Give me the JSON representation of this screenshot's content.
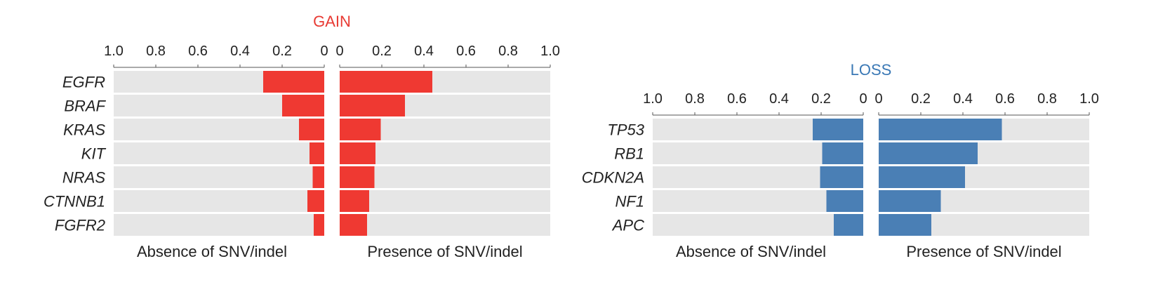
{
  "chart_data": [
    {
      "type": "bar",
      "orientation": "horizontal",
      "title": "GAIN",
      "title_color": "#e83a33",
      "bar_color": "#ef3932",
      "background_color": "#e6e6e6",
      "categories": [
        "EGFR",
        "BRAF",
        "KRAS",
        "KIT",
        "NRAS",
        "CTNNB1",
        "FGFR2"
      ],
      "xlim": [
        0,
        1.0
      ],
      "ticks": [
        "1.0",
        "0.8",
        "0.6",
        "0.4",
        "0.2",
        "0",
        "0",
        "0.2",
        "0.4",
        "0.6",
        "0.8",
        "1.0"
      ],
      "series": [
        {
          "name": "Absence of SNV/indel",
          "values": [
            0.29,
            0.2,
            0.12,
            0.07,
            0.055,
            0.08,
            0.05
          ]
        },
        {
          "name": "Presence of SNV/indel",
          "values": [
            0.44,
            0.31,
            0.195,
            0.17,
            0.165,
            0.14,
            0.13
          ]
        }
      ]
    },
    {
      "type": "bar",
      "orientation": "horizontal",
      "title": "LOSS",
      "title_color": "#3a78b5",
      "bar_color": "#4a7fb5",
      "background_color": "#e6e6e6",
      "categories": [
        "TP53",
        "RB1",
        "CDKN2A",
        "NF1",
        "APC"
      ],
      "xlim": [
        0,
        1.0
      ],
      "ticks": [
        "1.0",
        "0.8",
        "0.6",
        "0.4",
        "0.2",
        "0",
        "0",
        "0.2",
        "0.4",
        "0.6",
        "0.8",
        "1.0"
      ],
      "series": [
        {
          "name": "Absence of SNV/indel",
          "values": [
            0.24,
            0.195,
            0.205,
            0.175,
            0.14
          ]
        },
        {
          "name": "Presence of SNV/indel",
          "values": [
            0.585,
            0.47,
            0.41,
            0.295,
            0.25
          ]
        }
      ]
    }
  ]
}
